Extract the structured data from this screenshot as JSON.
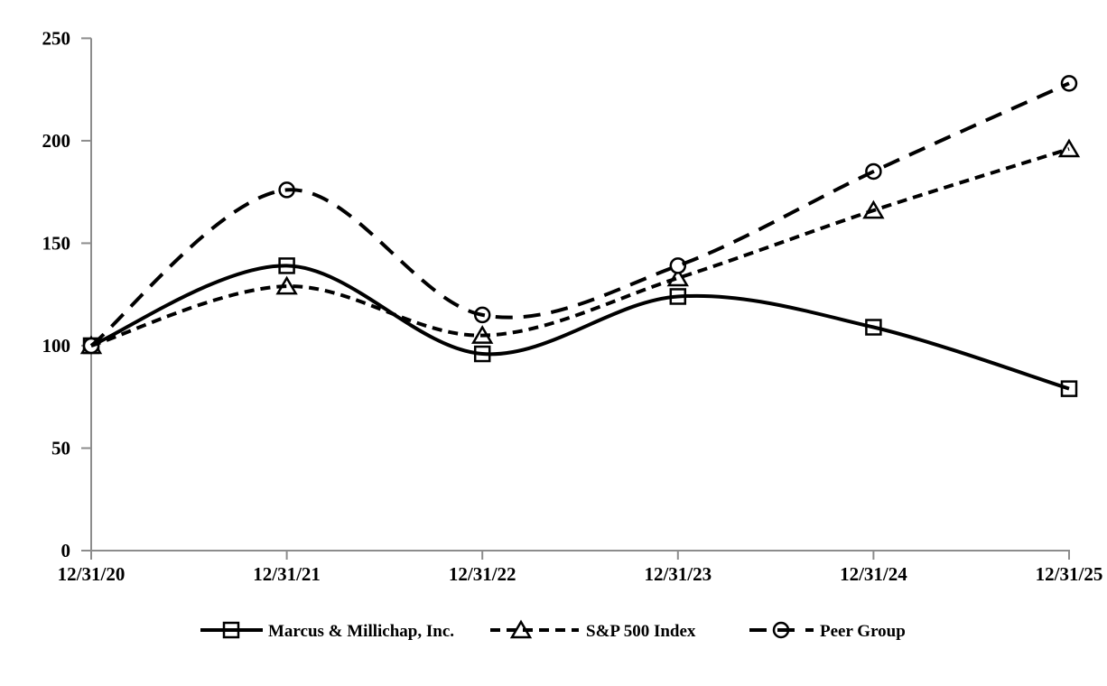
{
  "chart_data": {
    "type": "line",
    "title": "",
    "xlabel": "",
    "ylabel": "",
    "categories": [
      "12/31/20",
      "12/31/21",
      "12/31/22",
      "12/31/23",
      "12/31/24",
      "12/31/25"
    ],
    "series": [
      {
        "name": "Marcus & Millichap, Inc.",
        "values": [
          100,
          139,
          96,
          124,
          109,
          79
        ],
        "line_style": "solid",
        "marker": "square"
      },
      {
        "name": "S&P 500 Index",
        "values": [
          100,
          129,
          105,
          133,
          166,
          196
        ],
        "line_style": "dashed",
        "marker": "triangle"
      },
      {
        "name": "Peer Group",
        "values": [
          100,
          176,
          115,
          139,
          185,
          228
        ],
        "line_style": "long-dash",
        "marker": "circle"
      }
    ],
    "ylim": [
      0,
      250
    ],
    "y_ticks": [
      0,
      50,
      100,
      150,
      200,
      250
    ],
    "grid": false,
    "smoothed_lines": true,
    "legend_position": "bottom",
    "colors": {
      "series_line": "#000000",
      "marker_fill": "#ffffff",
      "axis": "#8c8c8c",
      "text": "#000000",
      "background": "#ffffff"
    }
  }
}
